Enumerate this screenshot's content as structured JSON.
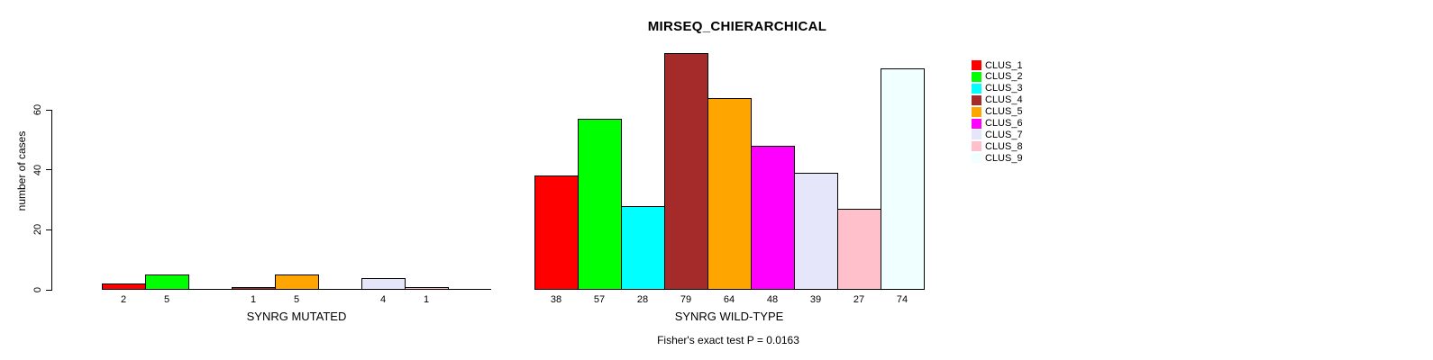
{
  "chart_data": {
    "type": "bar",
    "title": "MIRSEQ_CHIERARCHICAL",
    "ylabel": "number of cases",
    "xlabel": "",
    "categories": [
      "CLUS_1",
      "CLUS_2",
      "CLUS_3",
      "CLUS_4",
      "CLUS_5",
      "CLUS_6",
      "CLUS_7",
      "CLUS_8",
      "CLUS_9"
    ],
    "colors": [
      "#ff0000",
      "#00ff00",
      "#00ffff",
      "#a52a2a",
      "#ffa500",
      "#ff00ff",
      "#e6e6fa",
      "#ffc0cb",
      "#f0ffff"
    ],
    "series": [
      {
        "name": "SYNRG MUTATED",
        "values": [
          2,
          5,
          0,
          1,
          5,
          0,
          4,
          1,
          0
        ]
      },
      {
        "name": "SYNRG WILD-TYPE",
        "values": [
          38,
          57,
          28,
          79,
          64,
          48,
          39,
          27,
          74
        ]
      }
    ],
    "bar_value_labels": {
      "SYNRG MUTATED": [
        "2",
        "5",
        "1",
        "5",
        "4",
        "1"
      ],
      "SYNRG WILD-TYPE": [
        "38",
        "57",
        "28",
        "79",
        "64",
        "48",
        "39",
        "27",
        "74"
      ]
    },
    "yticks": [
      0,
      20,
      40,
      60
    ],
    "ylim": [
      0,
      86
    ],
    "grid": false,
    "legend_position": "right",
    "annotation": "Fisher's exact test P = 0.0163"
  },
  "legend": {
    "items": [
      {
        "label": "CLUS_1",
        "color": "#ff0000"
      },
      {
        "label": "CLUS_2",
        "color": "#00ff00"
      },
      {
        "label": "CLUS_3",
        "color": "#00ffff"
      },
      {
        "label": "CLUS_4",
        "color": "#a52a2a"
      },
      {
        "label": "CLUS_5",
        "color": "#ffa500"
      },
      {
        "label": "CLUS_6",
        "color": "#ff00ff"
      },
      {
        "label": "CLUS_7",
        "color": "#e6e6fa"
      },
      {
        "label": "CLUS_8",
        "color": "#ffc0cb"
      },
      {
        "label": "CLUS_9",
        "color": "#f0ffff"
      }
    ]
  }
}
